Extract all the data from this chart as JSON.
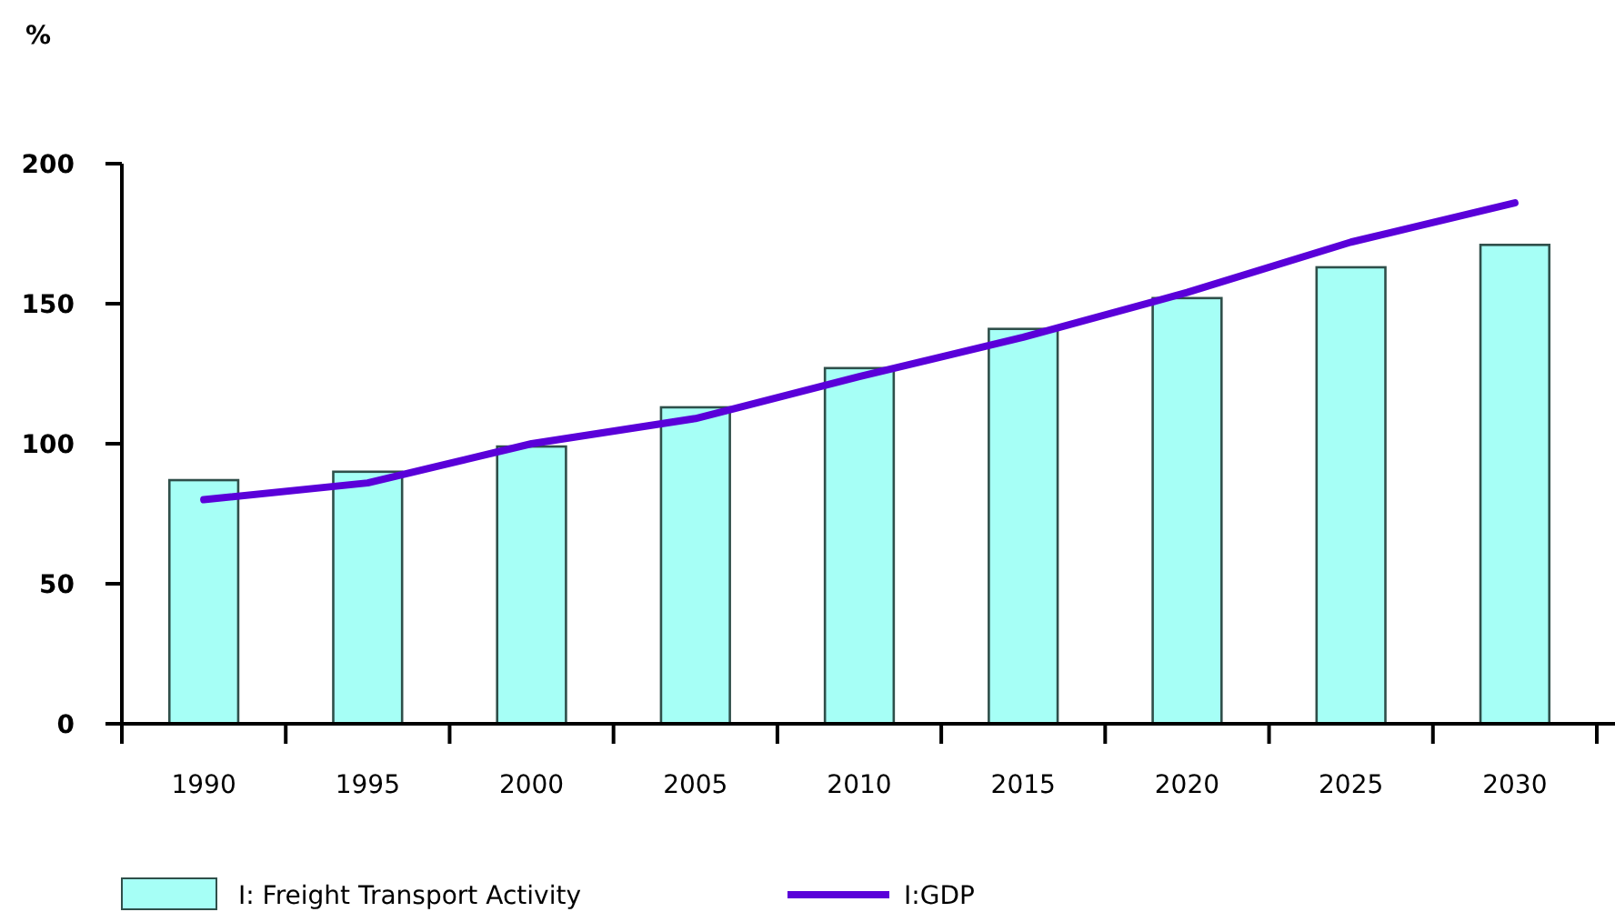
{
  "chart_data": {
    "type": "bar",
    "ylabel": "%",
    "categories": [
      "1990",
      "1995",
      "2000",
      "2005",
      "2010",
      "2015",
      "2020",
      "2025",
      "2030"
    ],
    "series": [
      {
        "name": "I: Freight Transport Activity",
        "color": "#a6fff6",
        "values": [
          87,
          90,
          99,
          113,
          127,
          141,
          152,
          163,
          171
        ]
      },
      {
        "name": "I:GDP",
        "type": "line",
        "color": "#5a00d9",
        "values": [
          80,
          86,
          100,
          109,
          124,
          138,
          154,
          172,
          186
        ]
      }
    ],
    "ylim": [
      0,
      200
    ],
    "yticks": [
      0,
      50,
      100,
      150,
      200
    ],
    "grid": false,
    "legend": "bottom",
    "marker": "none",
    "line_style": "solid"
  }
}
